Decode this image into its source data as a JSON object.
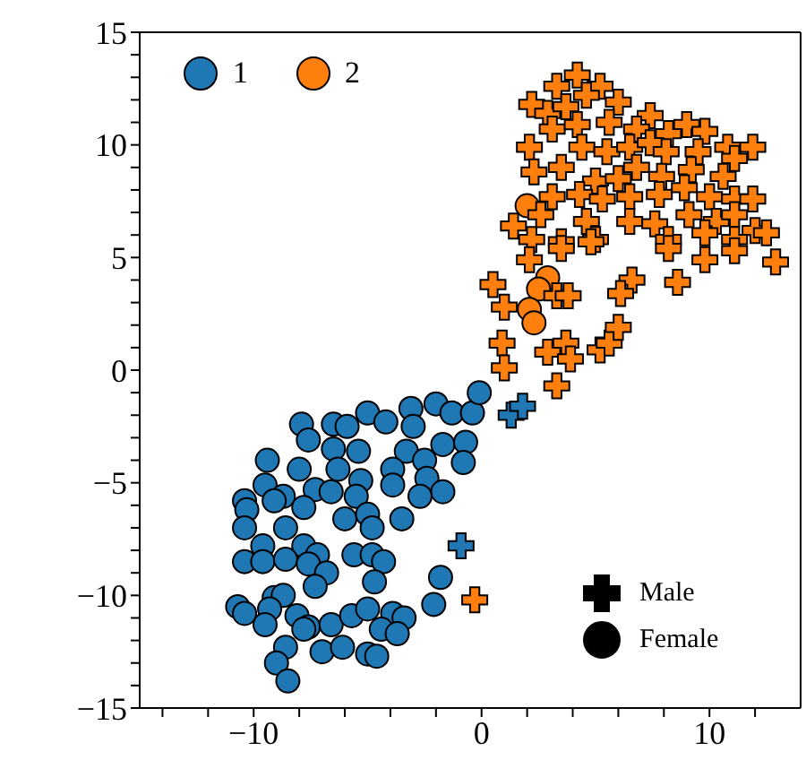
{
  "chart_data": {
    "type": "scatter",
    "legend": "top left",
    "xlim": [
      -15,
      14
    ],
    "ylim": [
      -15,
      15
    ],
    "xticks": [
      {
        "value": -14,
        "label": null
      },
      {
        "value": -12,
        "label": null
      },
      {
        "value": -10,
        "label": "−10"
      },
      {
        "value": -8,
        "label": null
      },
      {
        "value": -6,
        "label": null
      },
      {
        "value": -4,
        "label": null
      },
      {
        "value": -2,
        "label": null
      },
      0,
      {
        "value": 2,
        "label": null
      },
      {
        "value": 4,
        "label": null
      },
      {
        "value": 6,
        "label": null
      },
      {
        "value": 8,
        "label": null
      },
      10,
      {
        "value": 12,
        "label": null
      }
    ],
    "yticks": [
      {
        "value": -15,
        "label": "−15"
      },
      {
        "value": -14,
        "label": null
      },
      {
        "value": -13,
        "label": null
      },
      {
        "value": -12,
        "label": null
      },
      {
        "value": -11,
        "label": null
      },
      {
        "value": -10,
        "label": "−10"
      },
      {
        "value": -9,
        "label": null
      },
      {
        "value": -8,
        "label": null
      },
      {
        "value": -7,
        "label": null
      },
      {
        "value": -6,
        "label": null
      },
      {
        "value": -5,
        "label": "−5"
      },
      {
        "value": -4,
        "label": null
      },
      {
        "value": -3,
        "label": null
      },
      {
        "value": -2,
        "label": null
      },
      {
        "value": -1,
        "label": null
      },
      0,
      {
        "value": 1,
        "label": null
      },
      {
        "value": 2,
        "label": null
      },
      {
        "value": 3,
        "label": null
      },
      {
        "value": 4,
        "label": null
      },
      5,
      {
        "value": 6,
        "label": null
      },
      {
        "value": 7,
        "label": null
      },
      {
        "value": 8,
        "label": null
      },
      {
        "value": 9,
        "label": null
      },
      10,
      {
        "value": 11,
        "label": null
      },
      {
        "value": 12,
        "label": null
      },
      {
        "value": 13,
        "label": null
      },
      {
        "value": 14,
        "label": null
      },
      15
    ],
    "annotations": [
      "Male",
      "Female"
    ],
    "series": [
      {
        "name": "1",
        "color": "#1f77b4",
        "marker": "circle",
        "x": [
          -7.9,
          -7.6,
          -6.5,
          -5.9,
          -5.0,
          -4.2,
          -3.1,
          -3.0,
          -2.0,
          -1.3,
          -0.4,
          -0.1,
          -6.5,
          -5.4,
          -3.3,
          -2.5,
          -1.7,
          -0.7,
          -0.8,
          -9.4,
          -8.0,
          -9.5,
          -8.7,
          -7.3,
          -6.6,
          -6.3,
          -5.3,
          -3.9,
          -3.9,
          -2.4,
          -1.7,
          -2.7,
          -10.4,
          -10.3,
          -9.1,
          -7.8,
          -6.0,
          -5.5,
          -5.0,
          -4.8,
          -3.5,
          -10.4,
          -8.6,
          -9.6,
          -7.8,
          -7.2,
          -10.4,
          -9.6,
          -8.6,
          -7.6,
          -5.6,
          -4.8,
          -4.3,
          -6.8,
          -7.3,
          -4.7,
          -1.8,
          -10.7,
          -10.4,
          -9.1,
          -8.7,
          -9.3,
          -9.5,
          -8.1,
          -7.6,
          -7.8,
          -6.6,
          -5.7,
          -5.0,
          -3.9,
          -3.4,
          -4.4,
          -3.7,
          -2.1,
          -8.6,
          -9.0,
          -8.5,
          -7.0,
          -6.1,
          -5.0,
          -4.6
        ],
        "values": [
          -2.4,
          -3.1,
          -2.4,
          -2.5,
          -1.9,
          -2.3,
          -1.7,
          -2.5,
          -1.5,
          -1.9,
          -1.9,
          -1.0,
          -3.5,
          -3.6,
          -3.6,
          -4.0,
          -3.3,
          -3.2,
          -4.1,
          -4.0,
          -4.4,
          -5.1,
          -5.6,
          -5.3,
          -5.4,
          -4.4,
          -4.9,
          -4.4,
          -5.1,
          -4.8,
          -5.4,
          -5.6,
          -5.8,
          -6.2,
          -5.8,
          -6.1,
          -6.6,
          -5.6,
          -6.4,
          -7.0,
          -6.6,
          -7.0,
          -7.0,
          -7.8,
          -7.8,
          -8.2,
          -8.5,
          -8.5,
          -8.4,
          -8.6,
          -8.2,
          -8.2,
          -8.5,
          -9.0,
          -9.6,
          -9.4,
          -9.2,
          -10.5,
          -10.8,
          -10.1,
          -10.0,
          -10.6,
          -11.3,
          -10.9,
          -11.4,
          -11.5,
          -11.3,
          -10.9,
          -10.6,
          -10.8,
          -11.0,
          -11.5,
          -11.7,
          -10.4,
          -12.3,
          -13.0,
          -13.8,
          -12.5,
          -12.3,
          -12.6,
          -12.7
        ]
      },
      {
        "color": "#1f77b4",
        "marker": "cross",
        "x": [
          1.3,
          1.8,
          -0.9
        ],
        "values": [
          -2.0,
          -1.6,
          -7.8
        ]
      },
      {
        "name": "2",
        "color": "#ff7f0e",
        "marker": "circle",
        "x": [
          2.9,
          2.5,
          2.1,
          2.3,
          2.0
        ],
        "values": [
          4.1,
          3.6,
          2.7,
          2.1,
          7.3
        ]
      },
      {
        "color": "#ff7f0e",
        "marker": "cross",
        "x": [
          -0.3,
          4.2,
          3.3,
          5.2,
          2.2,
          4.6,
          6.0,
          2.9,
          3.7,
          3.1,
          4.2,
          5.6,
          7.4,
          6.8,
          9.0,
          9.8,
          8.2,
          2.1,
          4.4,
          5.5,
          6.5,
          7.4,
          8.1,
          9.5,
          10.8,
          11.9,
          11.1,
          3.5,
          2.3,
          5.0,
          6.0,
          6.8,
          7.9,
          9.2,
          10.6,
          4.3,
          5.3,
          6.5,
          7.8,
          8.9,
          10.0,
          11.1,
          11.9,
          3.1,
          2.6,
          1.4,
          4.6,
          6.5,
          7.6,
          9.1,
          10.3,
          11.1,
          12.0,
          12.5,
          2.2,
          3.5,
          5.0,
          8.2,
          9.8,
          11.1,
          2.1,
          3.5,
          4.8,
          0.5,
          1.0,
          3.3,
          3.8,
          6.6,
          6.1,
          8.6,
          8.2,
          9.8,
          11.1,
          12.9,
          0.9,
          1.0,
          2.9,
          3.7,
          3.9,
          5.2,
          5.6,
          6.0,
          3.3
        ],
        "values": [
          -10.2,
          13.1,
          12.6,
          12.6,
          11.8,
          12.2,
          11.9,
          11.4,
          11.7,
          10.7,
          10.9,
          11.0,
          11.3,
          10.7,
          10.9,
          10.6,
          10.5,
          9.9,
          9.9,
          9.7,
          9.9,
          10.1,
          9.7,
          9.7,
          9.9,
          9.9,
          9.4,
          9.0,
          8.8,
          8.4,
          8.5,
          9.0,
          8.6,
          8.9,
          8.6,
          7.8,
          7.6,
          7.7,
          7.8,
          8.1,
          7.7,
          7.6,
          7.6,
          7.7,
          6.9,
          6.4,
          6.6,
          6.6,
          6.5,
          6.9,
          6.6,
          6.9,
          6.2,
          6.1,
          5.8,
          5.7,
          5.8,
          5.8,
          6.1,
          5.8,
          4.9,
          5.4,
          5.7,
          3.8,
          2.8,
          3.3,
          3.3,
          4.0,
          3.4,
          3.9,
          5.4,
          4.9,
          5.3,
          4.8,
          1.2,
          0.1,
          0.8,
          1.2,
          0.5,
          0.9,
          1.2,
          1.9,
          -0.7
        ]
      }
    ]
  }
}
